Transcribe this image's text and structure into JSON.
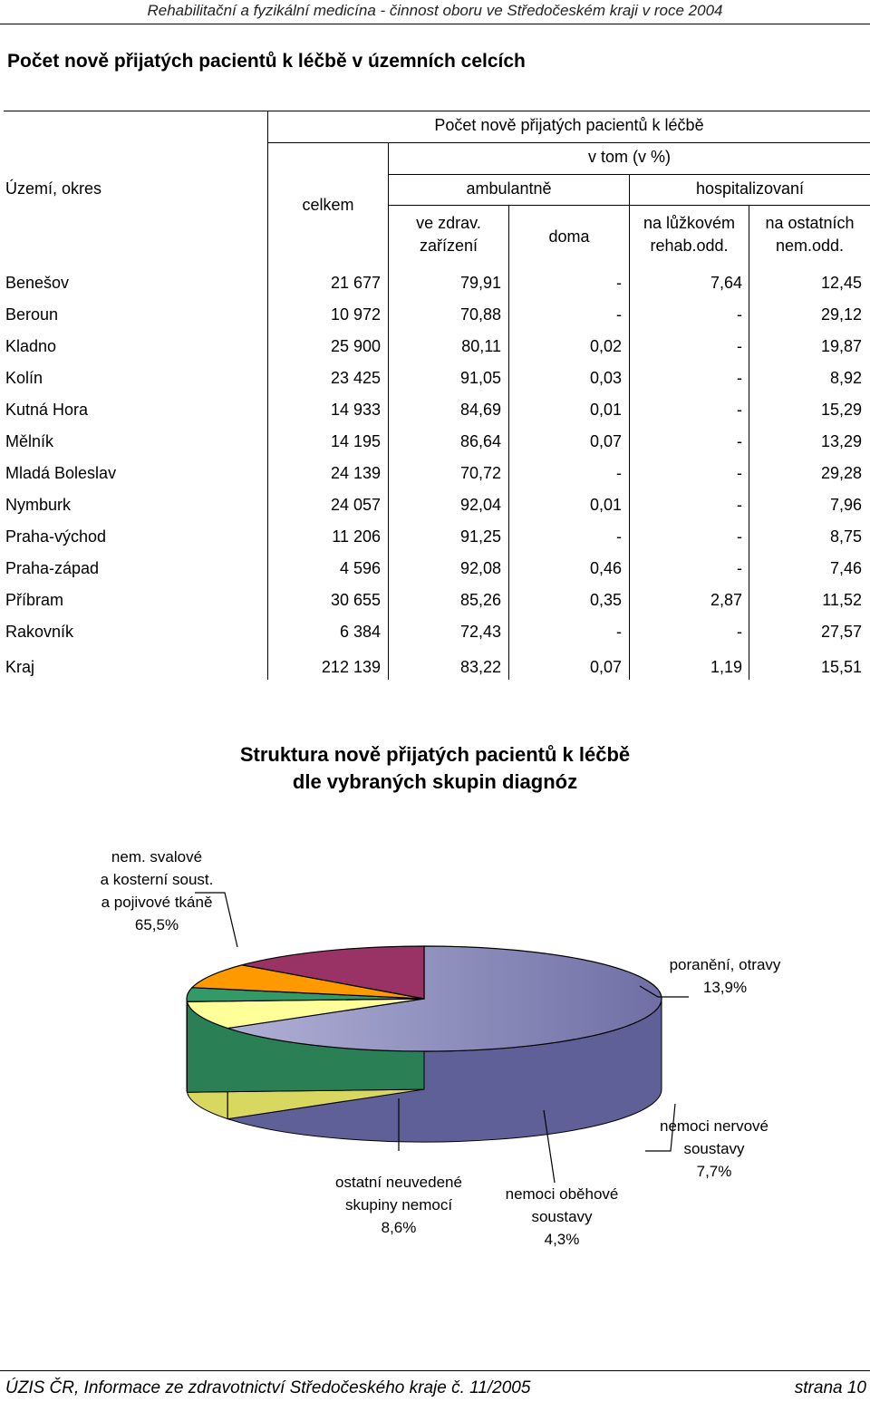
{
  "page_header": "Rehabilitační a fyzikální medicína - činnost oboru ve Středočeském kraji v roce 2004",
  "section_title": "Počet nově přijatých pacientů k léčbě v územních celcích",
  "table": {
    "header_group": "Počet nově přijatých pacientů k léčbě",
    "header_vtom": "v tom (v %)",
    "header_territory": "Území, okres",
    "header_total": "celkem",
    "header_ambulant": "ambulantně",
    "header_hospital": "hospitalizovaní",
    "header_zdrav_1": "ve zdrav.",
    "header_zdrav_2": "zařízení",
    "header_doma": "doma",
    "header_rehab_1": "na lůžkovém",
    "header_rehab_2": "rehab.odd.",
    "header_other_1": "na ostatních",
    "header_other_2": "nem.odd.",
    "rows": [
      {
        "name": "Benešov",
        "total": "21 677",
        "zdrav": "79,91",
        "doma": "-",
        "rehab": "7,64",
        "other": "12,45"
      },
      {
        "name": "Beroun",
        "total": "10 972",
        "zdrav": "70,88",
        "doma": "-",
        "rehab": "-",
        "other": "29,12"
      },
      {
        "name": "Kladno",
        "total": "25 900",
        "zdrav": "80,11",
        "doma": "0,02",
        "rehab": "-",
        "other": "19,87"
      },
      {
        "name": "Kolín",
        "total": "23 425",
        "zdrav": "91,05",
        "doma": "0,03",
        "rehab": "-",
        "other": "8,92"
      },
      {
        "name": "Kutná Hora",
        "total": "14 933",
        "zdrav": "84,69",
        "doma": "0,01",
        "rehab": "-",
        "other": "15,29"
      },
      {
        "name": "Mělník",
        "total": "14 195",
        "zdrav": "86,64",
        "doma": "0,07",
        "rehab": "-",
        "other": "13,29"
      },
      {
        "name": "Mladá Boleslav",
        "total": "24 139",
        "zdrav": "70,72",
        "doma": "-",
        "rehab": "-",
        "other": "29,28"
      },
      {
        "name": "Nymburk",
        "total": "24 057",
        "zdrav": "92,04",
        "doma": "0,01",
        "rehab": "-",
        "other": "7,96"
      },
      {
        "name": "Praha-východ",
        "total": "11 206",
        "zdrav": "91,25",
        "doma": "-",
        "rehab": "-",
        "other": "8,75"
      },
      {
        "name": "Praha-západ",
        "total": "4 596",
        "zdrav": "92,08",
        "doma": "0,46",
        "rehab": "-",
        "other": "7,46"
      },
      {
        "name": "Příbram",
        "total": "30 655",
        "zdrav": "85,26",
        "doma": "0,35",
        "rehab": "2,87",
        "other": "11,52"
      },
      {
        "name": "Rakovník",
        "total": "6 384",
        "zdrav": "72,43",
        "doma": "-",
        "rehab": "-",
        "other": "27,57"
      }
    ],
    "total_row": {
      "name": "Kraj",
      "total": "212 139",
      "zdrav": "83,22",
      "doma": "0,07",
      "rehab": "1,19",
      "other": "15,51"
    }
  },
  "chart_data": {
    "type": "pie",
    "title_line1": "Struktura nově přijatých pacientů k léčbě",
    "title_line2": "dle vybraných skupin diagnóz",
    "slices": [
      {
        "label_lines": [
          "nem. svalové",
          "a kosterní soust.",
          "a pojivové tkáně"
        ],
        "value_label": "65,5%",
        "value": 65.5,
        "color": "#9999CC",
        "side": "#606098"
      },
      {
        "label_lines": [
          "ostatní neuvedené",
          "skupiny nemocí"
        ],
        "value_label": "8,6%",
        "value": 8.6,
        "color": "#FFFF99",
        "side": "#D8D860"
      },
      {
        "label_lines": [
          "nemoci oběhové",
          "soustavy"
        ],
        "value_label": "4,3%",
        "value": 4.3,
        "color": "#339966",
        "side": "#2A7F55"
      },
      {
        "label_lines": [
          "nemoci nervové",
          "soustavy"
        ],
        "value_label": "7,7%",
        "value": 7.7,
        "color": "#FF9900",
        "side": "#E08600"
      },
      {
        "label_lines": [
          "poranění, otravy"
        ],
        "value_label": "13,9%",
        "value": 13.9,
        "color": "#993366",
        "side": "#7A2850"
      }
    ]
  },
  "footer_left": "ÚZIS ČR, Informace ze zdravotnictví Středočeského kraje č. 11/2005",
  "footer_right": "strana 10"
}
